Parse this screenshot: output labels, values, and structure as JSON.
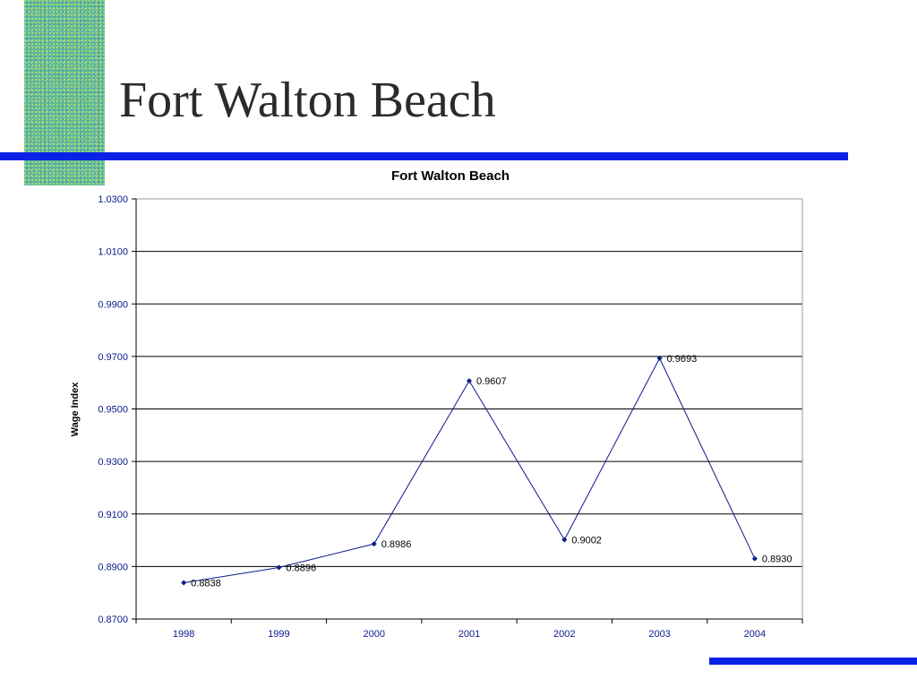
{
  "slide": {
    "title": "Fort Walton Beach"
  },
  "colors": {
    "accent_rule": "#0a22e8",
    "series_line": "#0b1a8c",
    "tick_text": "#0b1a8c",
    "gridline": "#000000",
    "decor_square": "#5fb89a"
  },
  "chart_data": {
    "type": "line",
    "title": "Fort Walton Beach",
    "xlabel": "",
    "ylabel": "Wage Index",
    "categories": [
      "1998",
      "1999",
      "2000",
      "2001",
      "2002",
      "2003",
      "2004"
    ],
    "series": [
      {
        "values": [
          0.8838,
          0.8896,
          0.8986,
          0.9607,
          0.9002,
          0.9693,
          0.893
        ],
        "labels": [
          "0.8838",
          "0.8896",
          "0.8986",
          "0.9607",
          "0.9002",
          "0.9693",
          "0.8930"
        ]
      }
    ],
    "ylim": [
      0.87,
      1.03
    ],
    "yticks": [
      0.87,
      0.89,
      0.91,
      0.93,
      0.95,
      0.97,
      0.99,
      1.01,
      1.03
    ],
    "ytick_labels": [
      "0.8700",
      "0.8900",
      "0.9100",
      "0.9300",
      "0.9500",
      "0.9700",
      "0.9900",
      "1.0100",
      "1.0300"
    ],
    "grid": true,
    "legend": "none",
    "marker": "diamond"
  }
}
